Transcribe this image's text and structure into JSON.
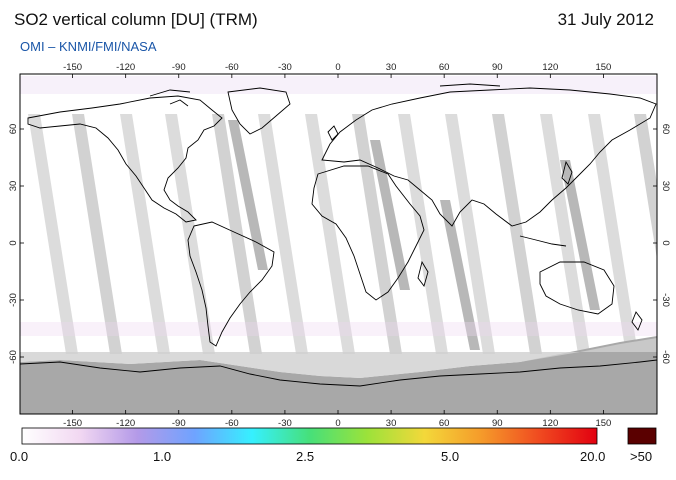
{
  "header": {
    "title": "SO2 vertical column [DU] (TRM)",
    "date": "31 July 2012",
    "subtitle": "OMI  –  KNMI/FMI/NASA"
  },
  "map": {
    "longitude_ticks": [
      "-150",
      "-120",
      "-90",
      "-60",
      "-30",
      "0",
      "30",
      "60",
      "90",
      "120",
      "150"
    ],
    "latitude_ticks": [
      "60",
      "30",
      "0",
      "-30",
      "-60"
    ],
    "colors": {
      "background": "#ffffff",
      "no_data_swath_gap": "#d0d0d0",
      "polar_night": "#a8a8a8",
      "coastline": "#000000"
    }
  },
  "colorbar": {
    "labels": [
      "0.0",
      "1.0",
      "2.5",
      "5.0",
      "20.0"
    ],
    "overflow_label": ">50",
    "overflow_color": "#5a0000",
    "gradient_colors": [
      "#ffffff",
      "#f2d8f2",
      "#b49ae8",
      "#6fa3ff",
      "#36f0ff",
      "#46e07a",
      "#9be23a",
      "#f3d83a",
      "#f59a2a",
      "#f04a20",
      "#e20010"
    ]
  }
}
